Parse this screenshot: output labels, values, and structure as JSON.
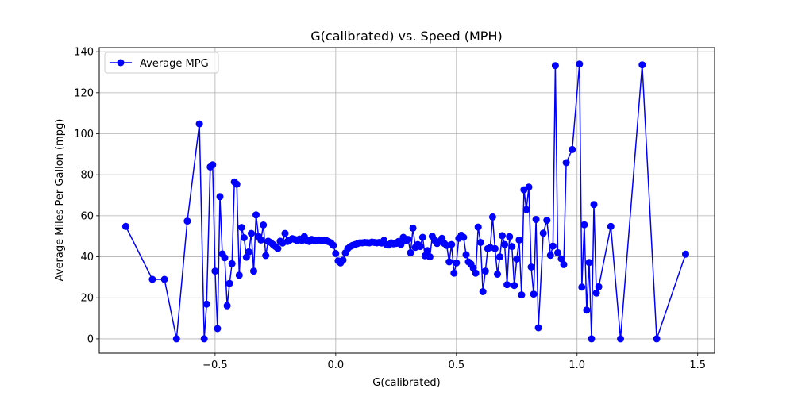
{
  "chart_data": {
    "type": "line",
    "title": "G(calibrated) vs. Speed (MPH)",
    "xlabel": "G(calibrated)",
    "ylabel": "Average Miles Per Gallon (mpg)",
    "xlim": [
      -0.98,
      1.57
    ],
    "ylim": [
      -7,
      142
    ],
    "xticks": [
      -0.5,
      0.0,
      0.5,
      1.0,
      1.5
    ],
    "xtick_labels": [
      "−0.5",
      "0.0",
      "0.5",
      "1.0",
      "1.5"
    ],
    "yticks": [
      0,
      20,
      40,
      60,
      80,
      100,
      120,
      140
    ],
    "ytick_labels": [
      "0",
      "20",
      "40",
      "60",
      "80",
      "100",
      "120",
      "140"
    ],
    "grid": true,
    "legend_position": "upper-left",
    "series": [
      {
        "name": "Average MPG",
        "color": "#0000ff",
        "marker": "circle",
        "points": [
          [
            -0.87,
            54.8
          ],
          [
            -0.76,
            29.0
          ],
          [
            -0.71,
            29.0
          ],
          [
            -0.66,
            0.0
          ],
          [
            -0.615,
            57.4
          ],
          [
            -0.565,
            104.8
          ],
          [
            -0.545,
            0.0
          ],
          [
            -0.535,
            16.9
          ],
          [
            -0.52,
            83.8
          ],
          [
            -0.51,
            84.8
          ],
          [
            -0.5,
            33.0
          ],
          [
            -0.49,
            5.0
          ],
          [
            -0.48,
            69.3
          ],
          [
            -0.47,
            41.4
          ],
          [
            -0.46,
            39.5
          ],
          [
            -0.45,
            16.1
          ],
          [
            -0.44,
            27.0
          ],
          [
            -0.43,
            36.6
          ],
          [
            -0.42,
            76.5
          ],
          [
            -0.41,
            75.4
          ],
          [
            -0.4,
            31.0
          ],
          [
            -0.39,
            54.3
          ],
          [
            -0.38,
            49.3
          ],
          [
            -0.37,
            39.8
          ],
          [
            -0.36,
            42.4
          ],
          [
            -0.35,
            51.4
          ],
          [
            -0.34,
            33.0
          ],
          [
            -0.33,
            60.4
          ],
          [
            -0.32,
            49.9
          ],
          [
            -0.31,
            48.2
          ],
          [
            -0.3,
            55.5
          ],
          [
            -0.29,
            40.6
          ],
          [
            -0.28,
            47.6
          ],
          [
            -0.27,
            47.0
          ],
          [
            -0.26,
            46.0
          ],
          [
            -0.25,
            45.0
          ],
          [
            -0.24,
            44.0
          ],
          [
            -0.23,
            47.6
          ],
          [
            -0.22,
            46.7
          ],
          [
            -0.21,
            51.4
          ],
          [
            -0.2,
            47.5
          ],
          [
            -0.19,
            48.2
          ],
          [
            -0.18,
            48.9
          ],
          [
            -0.17,
            48.5
          ],
          [
            -0.16,
            47.8
          ],
          [
            -0.15,
            48.7
          ],
          [
            -0.14,
            48.0
          ],
          [
            -0.13,
            49.9
          ],
          [
            -0.12,
            48.0
          ],
          [
            -0.11,
            47.5
          ],
          [
            -0.1,
            48.5
          ],
          [
            -0.09,
            48.0
          ],
          [
            -0.08,
            47.8
          ],
          [
            -0.07,
            48.2
          ],
          [
            -0.06,
            48.0
          ],
          [
            -0.05,
            47.9
          ],
          [
            -0.04,
            48.0
          ],
          [
            -0.03,
            47.4
          ],
          [
            -0.02,
            46.8
          ],
          [
            -0.01,
            45.6
          ],
          [
            0.0,
            41.6
          ],
          [
            0.01,
            38.0
          ],
          [
            0.02,
            37.0
          ],
          [
            0.03,
            38.4
          ],
          [
            0.04,
            41.9
          ],
          [
            0.05,
            44.0
          ],
          [
            0.06,
            45.0
          ],
          [
            0.07,
            45.6
          ],
          [
            0.08,
            46.0
          ],
          [
            0.09,
            46.4
          ],
          [
            0.1,
            46.8
          ],
          [
            0.11,
            46.8
          ],
          [
            0.12,
            47.0
          ],
          [
            0.13,
            46.9
          ],
          [
            0.14,
            46.8
          ],
          [
            0.15,
            47.2
          ],
          [
            0.16,
            47.0
          ],
          [
            0.17,
            46.8
          ],
          [
            0.18,
            47.0
          ],
          [
            0.19,
            46.7
          ],
          [
            0.2,
            48.0
          ],
          [
            0.21,
            46.0
          ],
          [
            0.22,
            45.7
          ],
          [
            0.23,
            46.8
          ],
          [
            0.24,
            46.3
          ],
          [
            0.25,
            46.5
          ],
          [
            0.26,
            47.5
          ],
          [
            0.27,
            46.0
          ],
          [
            0.28,
            49.5
          ],
          [
            0.29,
            47.8
          ],
          [
            0.3,
            48.5
          ],
          [
            0.31,
            42.0
          ],
          [
            0.32,
            54.0
          ],
          [
            0.33,
            44.6
          ],
          [
            0.34,
            46.0
          ],
          [
            0.35,
            45.0
          ],
          [
            0.36,
            49.5
          ],
          [
            0.37,
            40.5
          ],
          [
            0.38,
            43.0
          ],
          [
            0.39,
            40.0
          ],
          [
            0.4,
            50.0
          ],
          [
            0.41,
            48.0
          ],
          [
            0.42,
            46.5
          ],
          [
            0.43,
            47.5
          ],
          [
            0.44,
            49.0
          ],
          [
            0.45,
            46.5
          ],
          [
            0.46,
            45.5
          ],
          [
            0.47,
            37.5
          ],
          [
            0.48,
            46.0
          ],
          [
            0.49,
            32.0
          ],
          [
            0.5,
            37.0
          ],
          [
            0.51,
            49.0
          ],
          [
            0.52,
            50.5
          ],
          [
            0.53,
            49.5
          ],
          [
            0.54,
            41.0
          ],
          [
            0.55,
            37.5
          ],
          [
            0.56,
            36.5
          ],
          [
            0.57,
            34.5
          ],
          [
            0.58,
            32.0
          ],
          [
            0.59,
            54.5
          ],
          [
            0.6,
            47.0
          ],
          [
            0.61,
            23.0
          ],
          [
            0.62,
            33.0
          ],
          [
            0.63,
            44.0
          ],
          [
            0.64,
            44.5
          ],
          [
            0.65,
            59.4
          ],
          [
            0.66,
            44.0
          ],
          [
            0.67,
            31.5
          ],
          [
            0.68,
            40.0
          ],
          [
            0.69,
            50.3
          ],
          [
            0.7,
            46.0
          ],
          [
            0.71,
            26.4
          ],
          [
            0.72,
            49.8
          ],
          [
            0.73,
            45.0
          ],
          [
            0.74,
            26.0
          ],
          [
            0.75,
            38.9
          ],
          [
            0.76,
            48.2
          ],
          [
            0.77,
            21.4
          ],
          [
            0.78,
            72.7
          ],
          [
            0.79,
            63.0
          ],
          [
            0.8,
            74.0
          ],
          [
            0.81,
            35.0
          ],
          [
            0.82,
            21.8
          ],
          [
            0.83,
            58.2
          ],
          [
            0.84,
            5.4
          ],
          [
            0.86,
            51.5
          ],
          [
            0.875,
            57.8
          ],
          [
            0.89,
            40.7
          ],
          [
            0.9,
            45.2
          ],
          [
            0.91,
            133.2
          ],
          [
            0.92,
            42.0
          ],
          [
            0.935,
            39.0
          ],
          [
            0.945,
            36.2
          ],
          [
            0.955,
            85.9
          ],
          [
            0.98,
            92.3
          ],
          [
            1.01,
            134.0
          ],
          [
            1.02,
            25.2
          ],
          [
            1.03,
            55.6
          ],
          [
            1.04,
            14.0
          ],
          [
            1.05,
            37.2
          ],
          [
            1.06,
            0.0
          ],
          [
            1.07,
            65.5
          ],
          [
            1.08,
            22.3
          ],
          [
            1.09,
            25.4
          ],
          [
            1.14,
            54.8
          ],
          [
            1.18,
            0.0
          ],
          [
            1.27,
            133.6
          ],
          [
            1.33,
            0.0
          ],
          [
            1.45,
            41.3
          ]
        ]
      }
    ]
  }
}
